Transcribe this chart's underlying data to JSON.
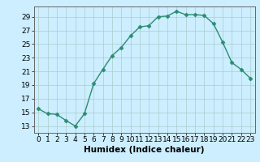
{
  "x": [
    0,
    1,
    2,
    3,
    4,
    5,
    6,
    7,
    8,
    9,
    10,
    11,
    12,
    13,
    14,
    15,
    16,
    17,
    18,
    19,
    20,
    21,
    22,
    23
  ],
  "y": [
    15.5,
    14.8,
    14.7,
    13.8,
    13.0,
    14.8,
    19.2,
    21.3,
    23.3,
    24.5,
    26.2,
    27.5,
    27.7,
    29.0,
    29.1,
    29.8,
    29.3,
    29.3,
    29.2,
    28.0,
    25.3,
    22.3,
    21.3,
    20.0
  ],
  "line_color": "#2e8b72",
  "marker": "D",
  "marker_size": 2.5,
  "bg_color": "#cceeff",
  "grid_color": "#aacccc",
  "xlabel": "Humidex (Indice chaleur)",
  "xlim": [
    -0.5,
    23.5
  ],
  "ylim": [
    12.0,
    30.5
  ],
  "yticks": [
    13,
    15,
    17,
    19,
    21,
    23,
    25,
    27,
    29
  ],
  "xticks": [
    0,
    1,
    2,
    3,
    4,
    5,
    6,
    7,
    8,
    9,
    10,
    11,
    12,
    13,
    14,
    15,
    16,
    17,
    18,
    19,
    20,
    21,
    22,
    23
  ],
  "tick_label_fontsize": 6.5,
  "xlabel_fontsize": 7.5,
  "line_width": 1.0
}
